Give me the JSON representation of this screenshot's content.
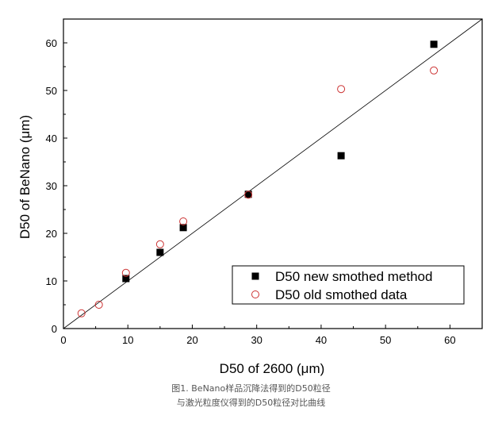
{
  "chart_data": {
    "type": "scatter",
    "xlabel": "D50 of 2600 (μm)",
    "ylabel": "D50 of BeNano (μm)",
    "xlim": [
      0,
      65
    ],
    "ylim": [
      0,
      65
    ],
    "xticks": [
      0,
      10,
      20,
      30,
      40,
      50,
      60
    ],
    "yticks": [
      0,
      10,
      20,
      30,
      40,
      50,
      60
    ],
    "tick_labels_x": [
      "0",
      "10",
      "20",
      "30",
      "40",
      "50",
      "60"
    ],
    "tick_labels_y": [
      "0",
      "10",
      "20",
      "30",
      "40",
      "50",
      "60"
    ],
    "grid": false,
    "legend_position": "bottom-right",
    "reference_line": {
      "from": [
        0,
        0
      ],
      "to": [
        65,
        65
      ]
    },
    "series": [
      {
        "name": "D50  new smothed method",
        "marker": "filled-square",
        "color": "#000000",
        "points": [
          [
            9.7,
            10.5
          ],
          [
            15.0,
            16.0
          ],
          [
            18.6,
            21.2
          ],
          [
            28.7,
            28.2
          ],
          [
            43.1,
            36.3
          ],
          [
            57.5,
            59.7
          ]
        ]
      },
      {
        "name": "D50 old smothed data",
        "marker": "open-circle",
        "color": "#cc3333",
        "points": [
          [
            2.8,
            3.2
          ],
          [
            5.5,
            5.0
          ],
          [
            9.7,
            11.7
          ],
          [
            15.0,
            17.7
          ],
          [
            18.6,
            22.5
          ],
          [
            28.7,
            28.1
          ],
          [
            43.1,
            50.3
          ],
          [
            57.5,
            54.2
          ]
        ]
      }
    ]
  },
  "caption": {
    "line1": "图1. BeNano样品沉降法得到的D50粒径",
    "line2": "与激光粒度仪得到的D50粒径对比曲线"
  }
}
